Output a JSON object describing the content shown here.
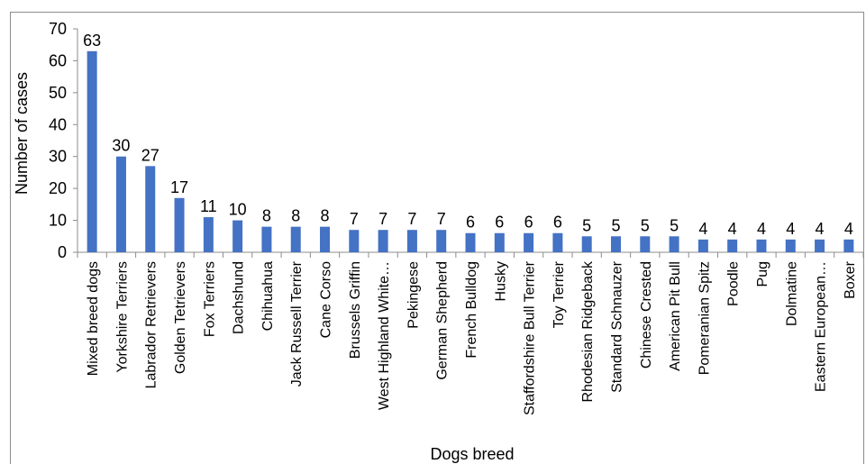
{
  "chart_data": {
    "type": "bar",
    "xlabel": "Dogs breed",
    "ylabel": "Number of cases",
    "ylim": [
      0,
      70
    ],
    "yticks": [
      0,
      10,
      20,
      30,
      40,
      50,
      60,
      70
    ],
    "grid": false,
    "legend": "none",
    "bar_color": "#4472c4",
    "categories": [
      "Mixed breed dogs",
      "Yorkshire Terriers",
      "Labrador Retrievers",
      "Golden Tetrievers",
      "Fox Terriers",
      "Dachshund",
      "Chihuahua",
      "Jack Russell Terrier",
      "Cane Corso",
      "Brussels Griffin",
      "West Highland White…",
      "Pekingese",
      "German Shepherd",
      "French Bulldog",
      "Husky",
      "Staffordshire Bull Terrier",
      "Toy Terrier",
      "Rhodesian Ridgeback",
      "Standard Schnauzer",
      "Chinese Crested",
      "American Pit Bull",
      "Pomeranian Spitz",
      "Poodle",
      "Pug",
      "Dolmatine",
      "Eastern European…",
      "Boxer"
    ],
    "values": [
      63,
      30,
      27,
      17,
      11,
      10,
      8,
      8,
      8,
      7,
      7,
      7,
      7,
      6,
      6,
      6,
      6,
      5,
      5,
      5,
      5,
      4,
      4,
      4,
      4,
      4,
      4
    ]
  }
}
